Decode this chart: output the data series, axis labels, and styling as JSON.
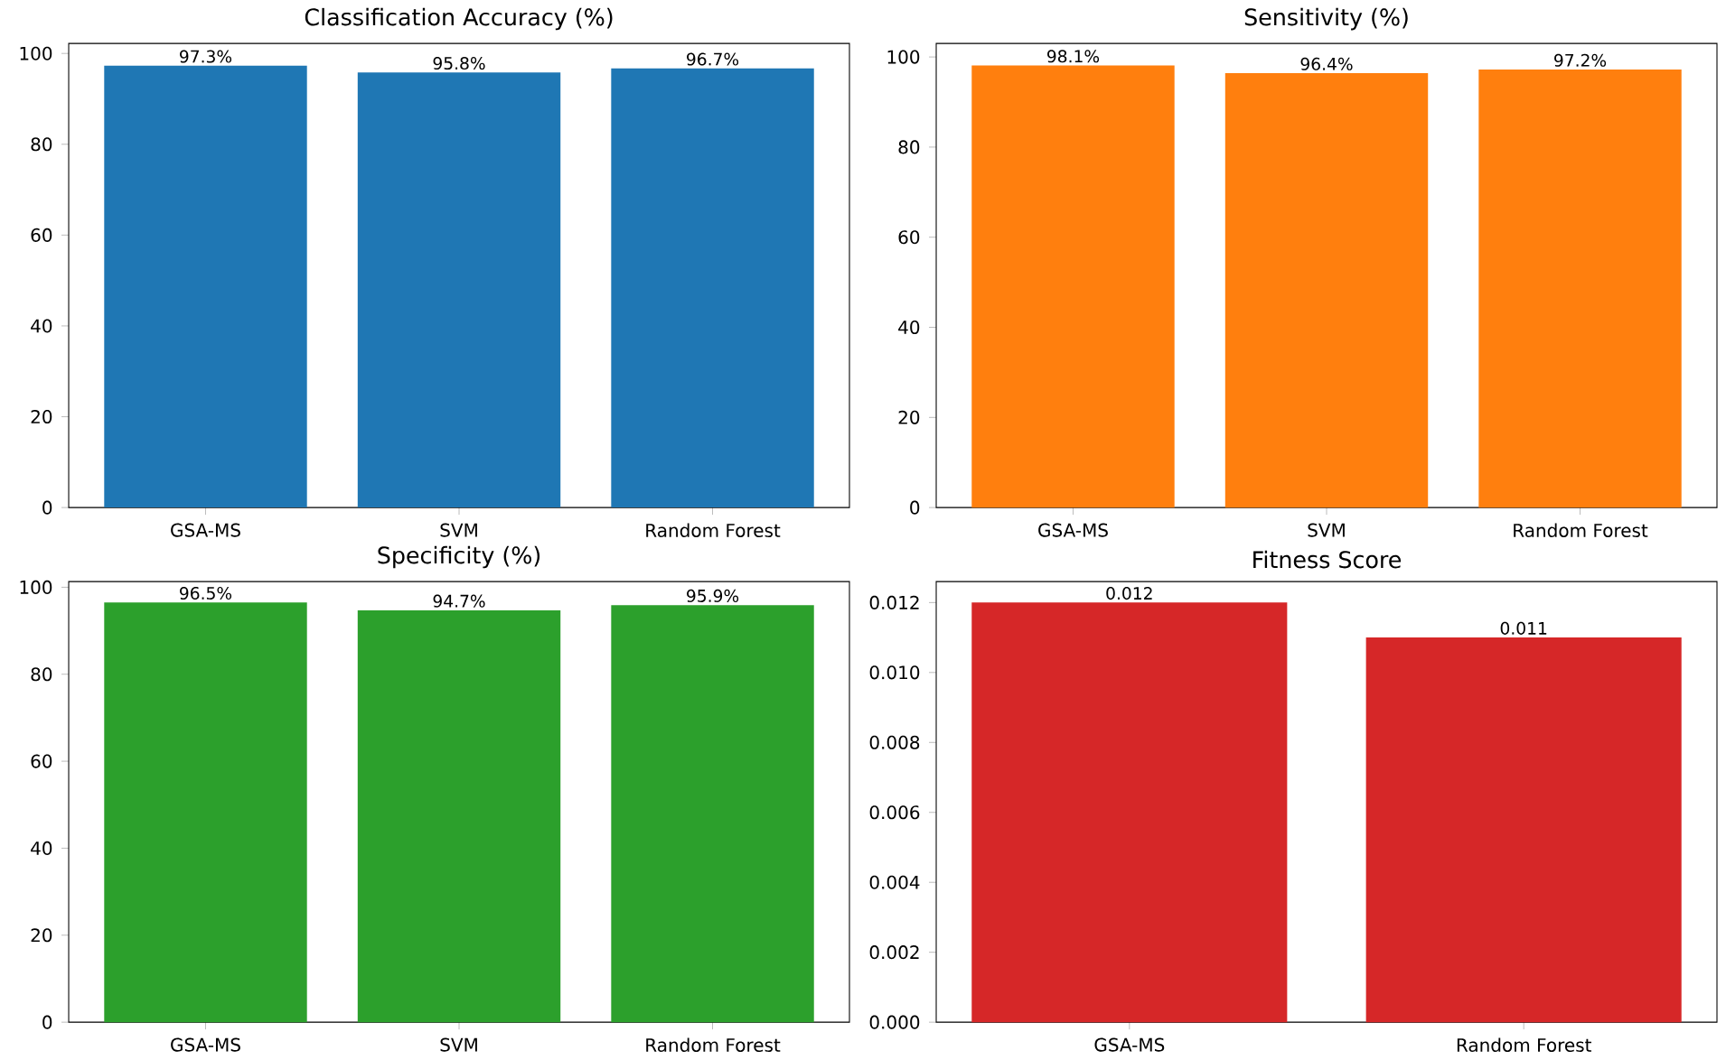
{
  "chart_data": [
    {
      "type": "bar",
      "title": "Classification Accuracy (%)",
      "categories": [
        "GSA-MS",
        "SVM",
        "Random Forest"
      ],
      "values": [
        97.3,
        95.8,
        96.7
      ],
      "color": "#1f77b4",
      "ylim": [
        0,
        102.2
      ],
      "yticks": [
        0,
        20,
        40,
        60,
        80,
        100
      ],
      "value_labels": [
        "97.3%",
        "95.8%",
        "96.7%"
      ]
    },
    {
      "type": "bar",
      "title": "Sensitivity (%)",
      "categories": [
        "GSA-MS",
        "SVM",
        "Random Forest"
      ],
      "values": [
        98.1,
        96.4,
        97.2
      ],
      "color": "#ff7f0e",
      "ylim": [
        0,
        103.0
      ],
      "yticks": [
        0,
        20,
        40,
        60,
        80,
        100
      ],
      "value_labels": [
        "98.1%",
        "96.4%",
        "97.2%"
      ]
    },
    {
      "type": "bar",
      "title": "Specificity (%)",
      "categories": [
        "GSA-MS",
        "SVM",
        "Random Forest"
      ],
      "values": [
        96.5,
        94.7,
        95.9
      ],
      "color": "#2ca02c",
      "ylim": [
        0,
        101.3
      ],
      "yticks": [
        0,
        20,
        40,
        60,
        80,
        100
      ],
      "value_labels": [
        "96.5%",
        "94.7%",
        "95.9%"
      ]
    },
    {
      "type": "bar",
      "title": "Fitness Score",
      "categories": [
        "GSA-MS",
        "Random Forest"
      ],
      "values": [
        0.012,
        0.011
      ],
      "color": "#d62728",
      "ylim": [
        0,
        0.0126
      ],
      "yticks": [
        {
          "value": 0,
          "label": "0.000"
        },
        {
          "value": 0.002,
          "label": "0.002"
        },
        {
          "value": 0.004,
          "label": "0.004"
        },
        {
          "value": 0.006,
          "label": "0.006"
        },
        {
          "value": 0.008,
          "label": "0.008"
        },
        {
          "value": 0.01,
          "label": "0.010"
        },
        {
          "value": 0.012,
          "label": "0.012"
        }
      ],
      "value_labels": [
        "0.012",
        "0.011"
      ]
    }
  ]
}
